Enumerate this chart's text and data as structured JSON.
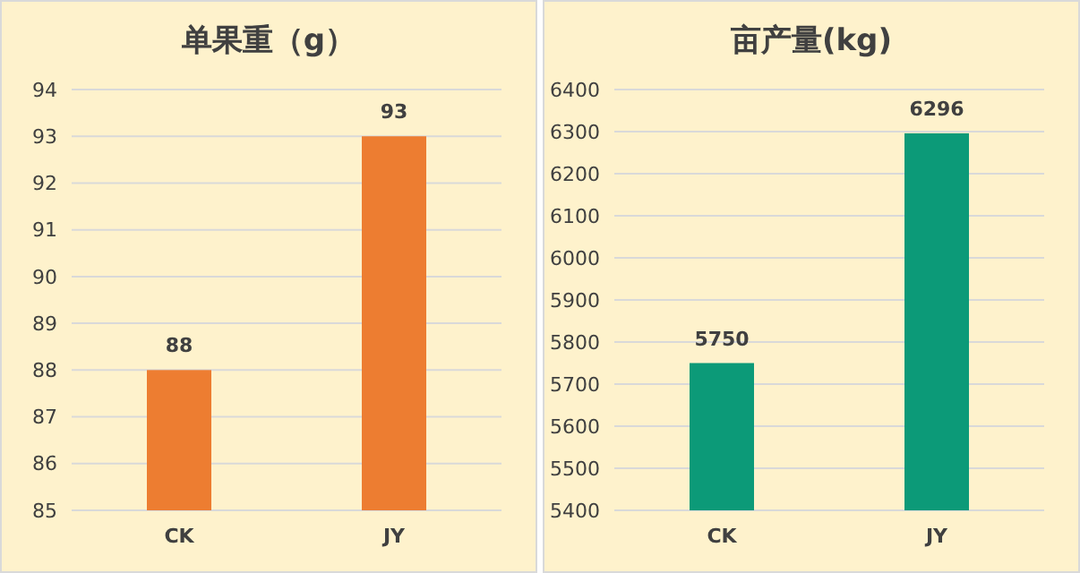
{
  "chart_data": [
    {
      "type": "bar",
      "title": "单果重（g）",
      "categories": [
        "CK",
        "JY"
      ],
      "values": [
        88,
        93
      ],
      "color": "#ed7d31",
      "ylim": [
        85,
        94
      ],
      "yticks": [
        85,
        86,
        87,
        88,
        89,
        90,
        91,
        92,
        93,
        94
      ],
      "grid": "y",
      "data_labels": true
    },
    {
      "type": "bar",
      "title": "亩产量(kg)",
      "categories": [
        "CK",
        "JY"
      ],
      "values": [
        5750,
        6296
      ],
      "color": "#0c9a78",
      "ylim": [
        5400,
        6400
      ],
      "yticks": [
        5400,
        5500,
        5600,
        5700,
        5800,
        5900,
        6000,
        6100,
        6200,
        6300,
        6400
      ],
      "grid": "y",
      "data_labels": true
    }
  ]
}
